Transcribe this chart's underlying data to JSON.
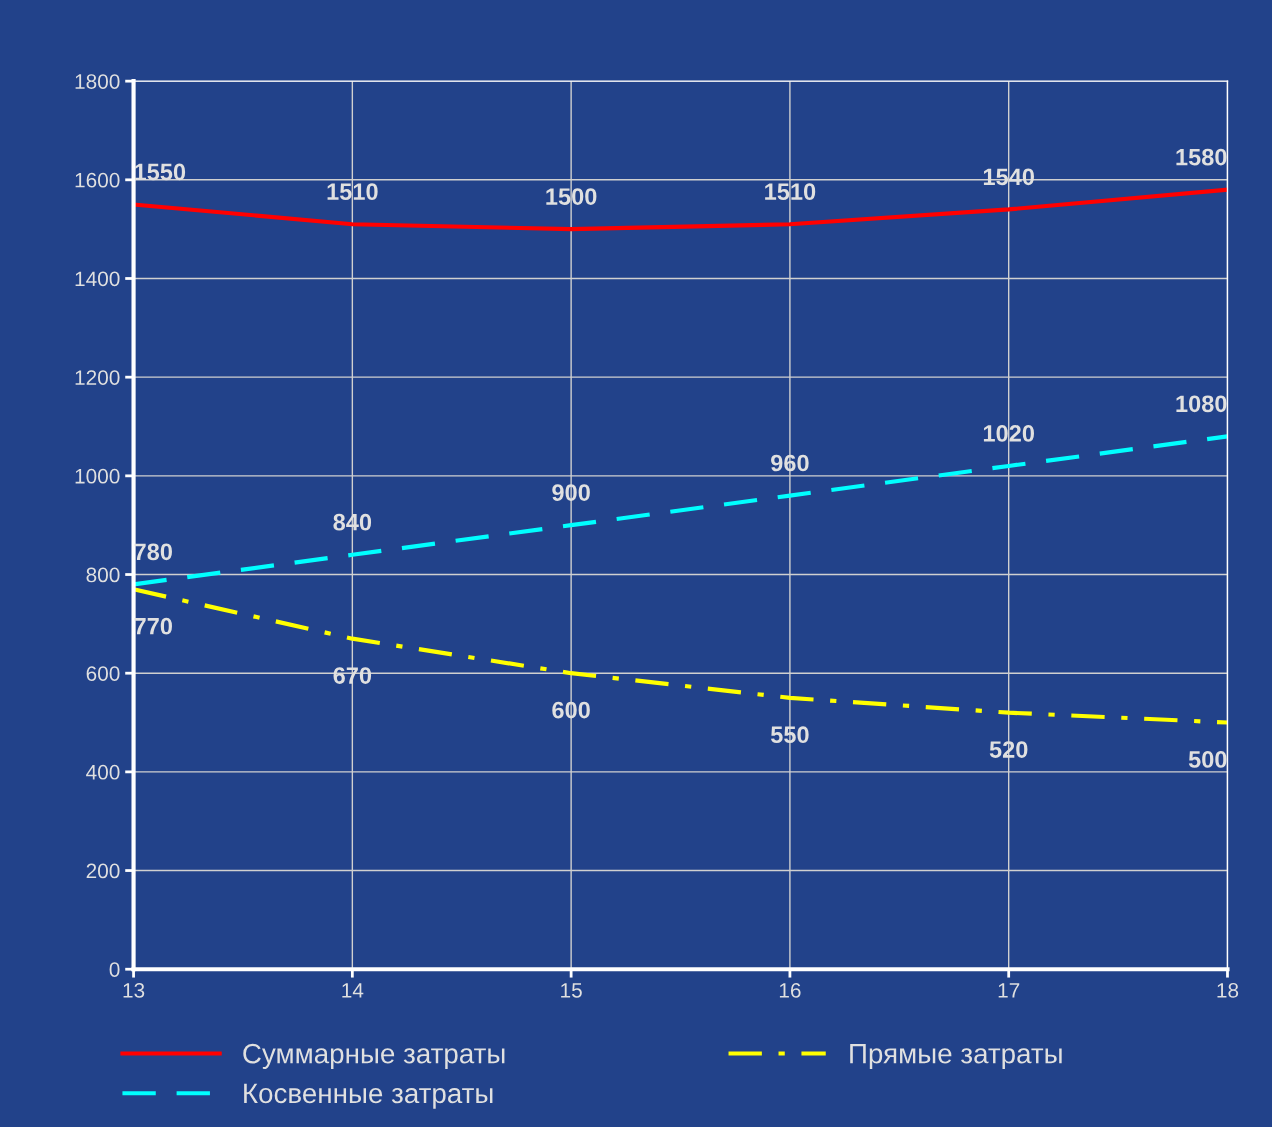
{
  "chart_data": {
    "type": "line",
    "x": [
      13,
      14,
      15,
      16,
      17,
      18
    ],
    "xlim": [
      13,
      18
    ],
    "xticks": [
      13,
      14,
      15,
      16,
      17,
      18
    ],
    "ylim": [
      0,
      1800
    ],
    "yticks": [
      0,
      200,
      400,
      600,
      800,
      1000,
      1200,
      1400,
      1600,
      1800
    ],
    "grid": true,
    "legend": "bottom",
    "data_labels": true,
    "marker": "none",
    "series": [
      {
        "name": "Суммарные затраты",
        "color": "#ff0000",
        "line_style": "solid",
        "values": [
          1550,
          1510,
          1500,
          1510,
          1540,
          1580
        ]
      },
      {
        "name": "Косвенные затраты",
        "color": "#00ffff",
        "line_style": "dashed",
        "values": [
          780,
          840,
          900,
          960,
          1020,
          1080
        ]
      },
      {
        "name": "Прямые затраты",
        "color": "#ffff00",
        "line_style": "dashdot",
        "values": [
          770,
          670,
          600,
          550,
          520,
          500
        ]
      }
    ]
  }
}
